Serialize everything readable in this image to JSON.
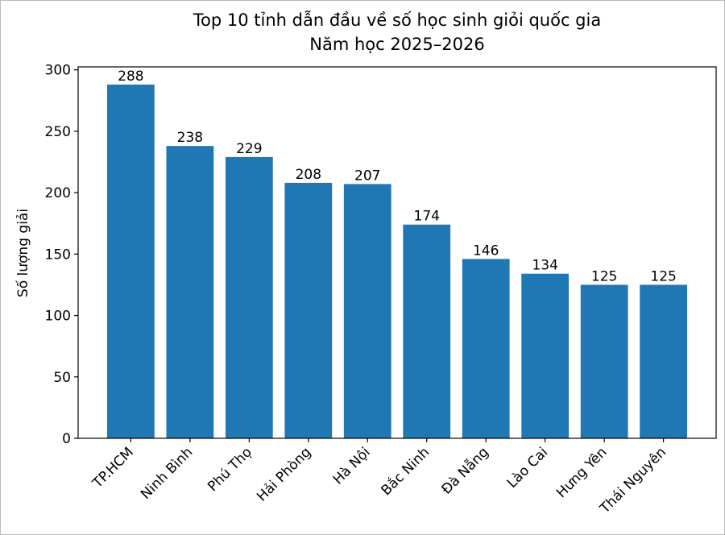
{
  "chart_data": {
    "type": "bar",
    "title": "Top 10 tỉnh dẫn đầu về số học sinh giỏi quốc gia",
    "subtitle": "Năm học 2025–2026",
    "y_label": "Số lượng giải",
    "categories": [
      "TP.HCM",
      "Ninh Bình",
      "Phú Thọ",
      "Hải Phòng",
      "Hà Nội",
      "Bắc Ninh",
      "Đà Nẵng",
      "Lào Cai",
      "Hưng Yên",
      "Thái Nguyên"
    ],
    "values": [
      288,
      238,
      229,
      208,
      207,
      174,
      146,
      134,
      125,
      125
    ],
    "color": "#1f77b4",
    "ylim": [
      0,
      302.4
    ],
    "yticks": [
      0,
      50,
      100,
      150,
      200,
      250,
      300
    ],
    "grid": false,
    "value_labels_shown": true
  }
}
